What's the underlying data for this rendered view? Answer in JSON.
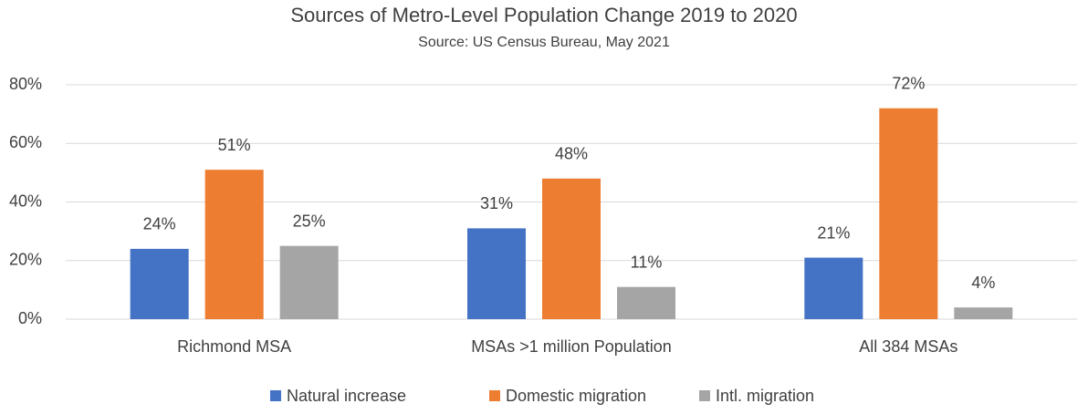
{
  "chart_data": {
    "type": "bar",
    "title": "Sources of Metro-Level Population Change 2019 to 2020",
    "subtitle": "Source: US Census Bureau, May 2021",
    "categories": [
      "Richmond MSA",
      "MSAs >1 million Population",
      "All 384 MSAs"
    ],
    "series": [
      {
        "name": "Natural increase",
        "color": "#4472c4",
        "values": [
          24,
          31,
          21
        ],
        "value_labels": [
          "24%",
          "31%",
          "21%"
        ]
      },
      {
        "name": "Domestic migration",
        "color": "#ed7d31",
        "values": [
          51,
          48,
          72
        ],
        "value_labels": [
          "51%",
          "48%",
          "72%"
        ]
      },
      {
        "name": "Intl. migration",
        "color": "#a5a5a5",
        "values": [
          25,
          11,
          4
        ],
        "value_labels": [
          "25%",
          "11%",
          "4%"
        ]
      }
    ],
    "ylim": [
      0,
      80
    ],
    "yticks": [
      {
        "value": 0,
        "label": "0%"
      },
      {
        "value": 20,
        "label": "20%"
      },
      {
        "value": 40,
        "label": "40%"
      },
      {
        "value": 60,
        "label": "60%"
      },
      {
        "value": 80,
        "label": "80%"
      }
    ],
    "grid": true
  }
}
